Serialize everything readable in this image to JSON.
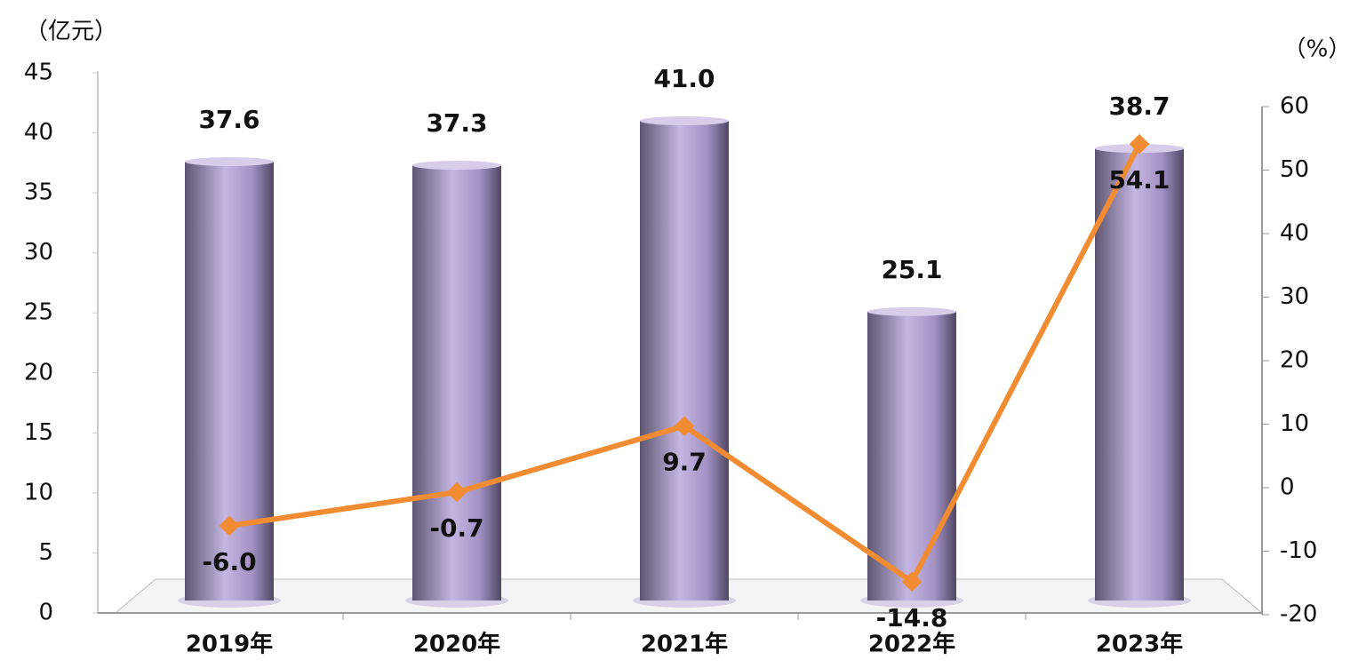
{
  "chart_data": {
    "type": "combo",
    "y_label": "（亿元）",
    "y2_label": "（%）",
    "categories": [
      "2019年",
      "2020年",
      "2021年",
      "2022年",
      "2023年"
    ],
    "series": [
      {
        "type": "bar",
        "color": "#b3a4d4",
        "values": [
          37.6,
          37.3,
          41.0,
          25.1,
          38.7
        ],
        "value_labels": [
          "37.6",
          "37.3",
          "41.0",
          "25.1",
          "38.7"
        ]
      },
      {
        "type": "line",
        "axis": "y2",
        "color": "#f28c33",
        "values": [
          -6.0,
          -0.7,
          9.7,
          -14.8,
          54.1
        ],
        "value_labels": [
          "-6.0",
          "-0.7",
          "9.7",
          "-14.8",
          "54.1"
        ]
      }
    ],
    "ylim": [
      0,
      45
    ],
    "yticks": [
      0,
      5,
      10,
      15,
      20,
      25,
      30,
      35,
      40,
      45
    ],
    "y2lim": [
      -20,
      60
    ],
    "y2ticks": [
      -20,
      -10,
      0,
      10,
      20,
      30,
      40,
      50,
      60
    ]
  }
}
